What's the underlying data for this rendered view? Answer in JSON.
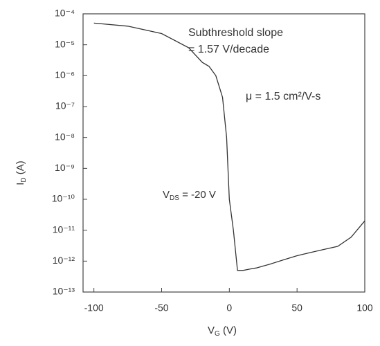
{
  "chart_data": {
    "type": "line",
    "annotations": [
      "Subthreshold slope",
      "= 1.57 V/decade",
      "μ = 1.5 cm²/V-s"
    ],
    "vds_label": {
      "main": "V",
      "sub": "DS",
      "rest": " = -20 V"
    },
    "x_label": {
      "main": "V",
      "sub": "G",
      "rest": " (V)"
    },
    "y_label": {
      "main": "I",
      "sub": "D",
      "rest": " (A)"
    },
    "x": [
      -100,
      -75,
      -50,
      -30,
      -20,
      -15,
      -10,
      -5,
      -2,
      0,
      3,
      6,
      10,
      15,
      20,
      30,
      40,
      50,
      60,
      70,
      80,
      90,
      100
    ],
    "series": [
      {
        "color": "#333333",
        "values": [
          5e-05,
          4e-05,
          2.3e-05,
          8e-06,
          2.7e-06,
          2e-06,
          1e-06,
          2e-07,
          1e-08,
          1e-10,
          1e-11,
          5e-13,
          5e-13,
          5.5e-13,
          6e-13,
          8e-13,
          1.1e-12,
          1.5e-12,
          1.9e-12,
          2.4e-12,
          3e-12,
          6e-12,
          2e-11
        ]
      }
    ],
    "xlim": [
      -108,
      100
    ],
    "ylim": [
      1e-13,
      0.0001
    ],
    "ylog": true,
    "xticks": [
      -100,
      -50,
      0,
      50,
      100
    ],
    "yticks": [
      {
        "value": 0.0001,
        "label": "10⁻⁴"
      },
      {
        "value": 1e-05,
        "label": "10⁻⁵"
      },
      {
        "value": 1e-06,
        "label": "10⁻⁶"
      },
      {
        "value": 1e-07,
        "label": "10⁻⁷"
      },
      {
        "value": 1e-08,
        "label": "10⁻⁸"
      },
      {
        "value": 1e-09,
        "label": "10⁻⁹"
      },
      {
        "value": 1e-10,
        "label": "10⁻¹⁰"
      },
      {
        "value": 1e-11,
        "label": "10⁻¹¹"
      },
      {
        "value": 1e-12,
        "label": "10⁻¹²"
      },
      {
        "value": 1e-13,
        "label": "10⁻¹³"
      }
    ]
  }
}
